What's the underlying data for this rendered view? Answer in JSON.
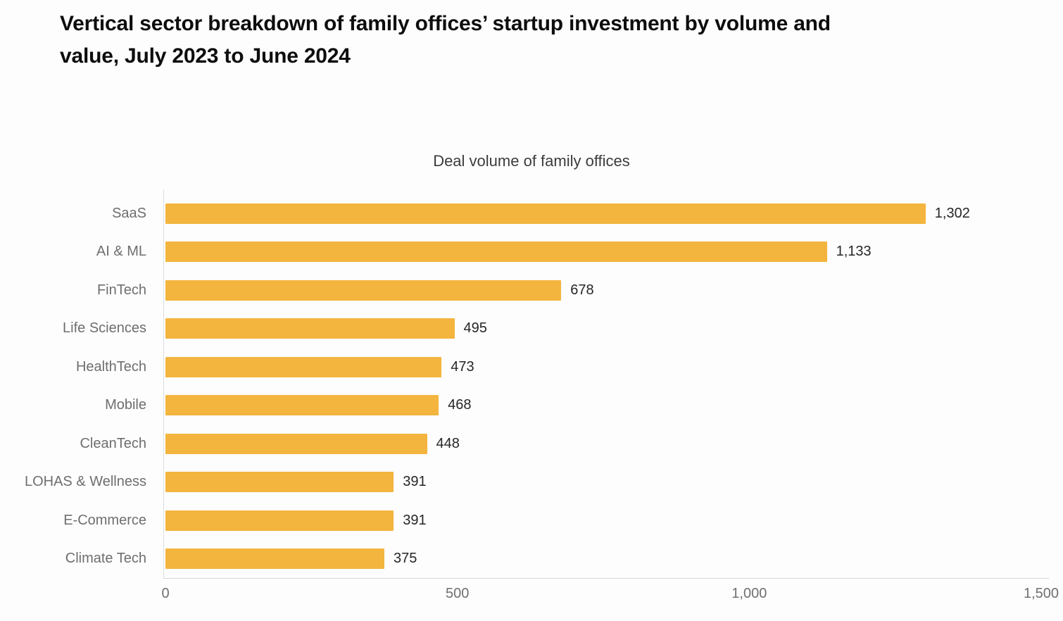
{
  "page": {
    "title_line1": "Vertical sector breakdown of family offices’ startup investment by volume and",
    "title_line2": "value, July 2023 to June 2024"
  },
  "chart_data": {
    "type": "bar",
    "orientation": "horizontal",
    "title": "Deal volume of family offices",
    "categories": [
      "SaaS",
      "AI & ML",
      "FinTech",
      "Life Sciences",
      "HealthTech",
      "Mobile",
      "CleanTech",
      "LOHAS & Wellness",
      "E-Commerce",
      "Climate Tech"
    ],
    "values": [
      1302,
      1133,
      678,
      495,
      473,
      468,
      448,
      391,
      391,
      375
    ],
    "value_labels": [
      "1,302",
      "1,133",
      "678",
      "495",
      "473",
      "468",
      "448",
      "391",
      "391",
      "375"
    ],
    "xlabel": "",
    "ylabel": "",
    "xlim": [
      0,
      1500
    ],
    "x_ticks": [
      {
        "label": "0",
        "value": 0
      },
      {
        "label": "500",
        "value": 500
      },
      {
        "label": "1,000",
        "value": 1000
      },
      {
        "label": "1,500",
        "value": 1500
      }
    ],
    "grid": false,
    "legend_position": "none",
    "colors": {
      "bar": "#F3B53E",
      "category_label": "#6E6E6E",
      "value_label": "#262626",
      "tick_label": "#6F6F6F",
      "axis_line": "#D6D6D6"
    }
  }
}
